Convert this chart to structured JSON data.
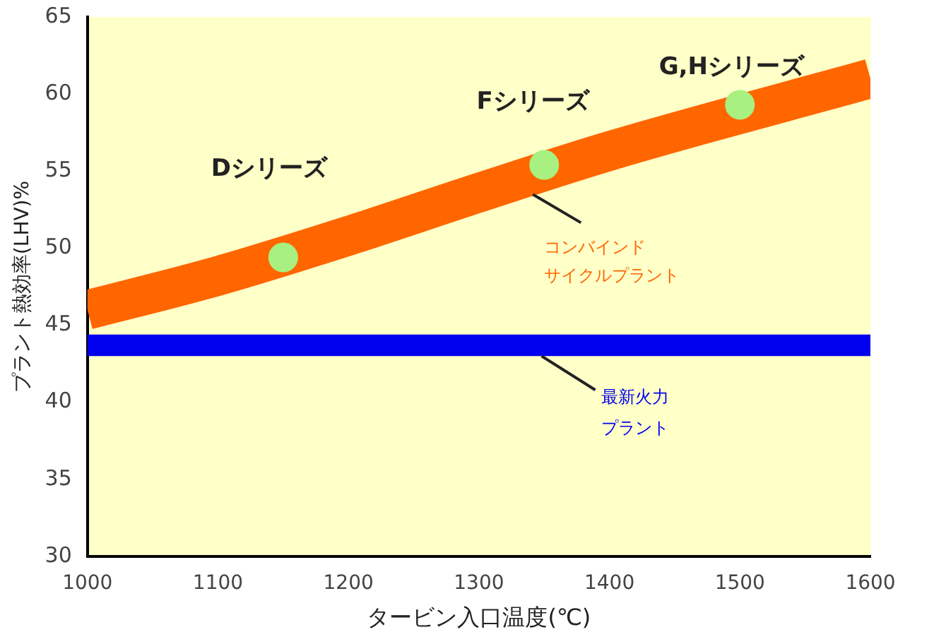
{
  "chart_data": {
    "type": "line",
    "xlabel": "タービン入口温度(℃)",
    "ylabel": "プラント熱効率(LHV)%",
    "x": [
      1000,
      1100,
      1200,
      1300,
      1400,
      1500,
      1600
    ],
    "xlim": [
      1000,
      1600
    ],
    "xticks": [
      1000,
      1100,
      1200,
      1300,
      1400,
      1500,
      1600
    ],
    "ylim": [
      30,
      65
    ],
    "yticks": [
      30,
      35,
      40,
      45,
      50,
      55,
      60,
      65
    ],
    "grid": false,
    "legend": false,
    "series": [
      {
        "name": "コンバインドサイクルプラント",
        "color": "#ff6600",
        "values": [
          46,
          48.2,
          50.8,
          53.6,
          56.3,
          null,
          61
        ]
      },
      {
        "type": "scatter",
        "color": "#a8f080",
        "marker": "circle",
        "x": [
          1150,
          1350,
          1500
        ],
        "values": [
          49.4,
          55.4,
          59.3
        ]
      }
    ],
    "bands": [
      {
        "axis": "y",
        "from": 43,
        "to": 44.4,
        "label": "最新火力プラント",
        "color": "#0000ee"
      }
    ],
    "annotations": [
      "Dシリーズ",
      "Fシリーズ",
      "G,Hシリーズ"
    ]
  }
}
